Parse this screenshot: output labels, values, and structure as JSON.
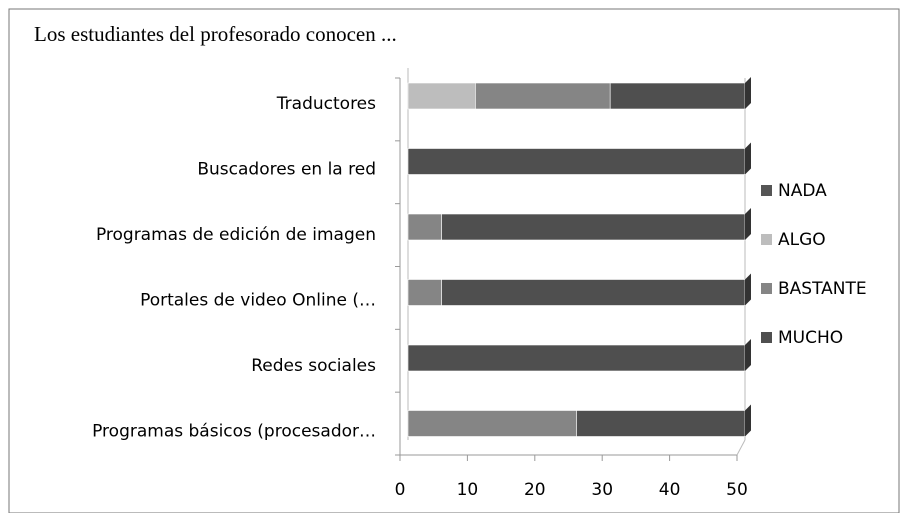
{
  "chart_data": {
    "type": "bar",
    "orientation": "horizontal",
    "stacked": true,
    "title": "Los estudiantes del profesorado conocen ...",
    "categories": [
      "Traductores",
      "Buscadores en la red",
      "Programas de edición de imagen",
      "Portales de video Online (…",
      "Redes sociales",
      "Programas básicos (procesador…"
    ],
    "series": [
      {
        "name": "NADA",
        "color": "#555555",
        "values": [
          0,
          0,
          0,
          0,
          0,
          0
        ]
      },
      {
        "name": "ALGO",
        "color": "#bdbdbd",
        "values": [
          10,
          0,
          0,
          0,
          0,
          0
        ]
      },
      {
        "name": "BASTANTE",
        "color": "#858585",
        "values": [
          20,
          0,
          5,
          5,
          0,
          25
        ]
      },
      {
        "name": "MUCHO",
        "color": "#4f4f4f",
        "values": [
          20,
          50,
          45,
          45,
          50,
          25
        ]
      }
    ],
    "xlim": [
      0,
      50
    ],
    "xticks": [
      0,
      10,
      20,
      30,
      40,
      50
    ],
    "legend": "right"
  }
}
